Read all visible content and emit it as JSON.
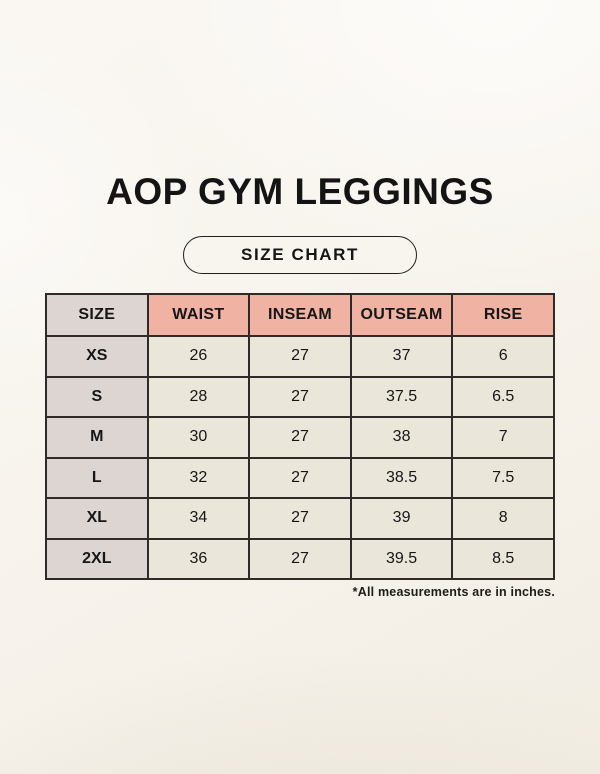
{
  "page": {
    "title": "AOP GYM LEGGINGS",
    "badge_label": "SIZE CHART",
    "footnote": "*All measurements are in inches."
  },
  "colors": {
    "background": "#f7f3ec",
    "header_accent": "#f0b3a3",
    "size_column": "#dcd5d2",
    "cell": "#ebe6da",
    "border": "#2e2a27",
    "text": "#161616"
  },
  "chart_data": {
    "type": "table",
    "title": "AOP GYM LEGGINGS",
    "subtitle": "SIZE CHART",
    "columns": [
      "SIZE",
      "WAIST",
      "INSEAM",
      "OUTSEAM",
      "RISE"
    ],
    "rows": [
      [
        "XS",
        "26",
        "27",
        "37",
        "6"
      ],
      [
        "S",
        "28",
        "27",
        "37.5",
        "6.5"
      ],
      [
        "M",
        "30",
        "27",
        "38",
        "7"
      ],
      [
        "L",
        "32",
        "27",
        "38.5",
        "7.5"
      ],
      [
        "XL",
        "34",
        "27",
        "39",
        "8"
      ],
      [
        "2XL",
        "36",
        "27",
        "39.5",
        "8.5"
      ]
    ],
    "note": "*All measurements are in inches.",
    "units": "inches"
  }
}
